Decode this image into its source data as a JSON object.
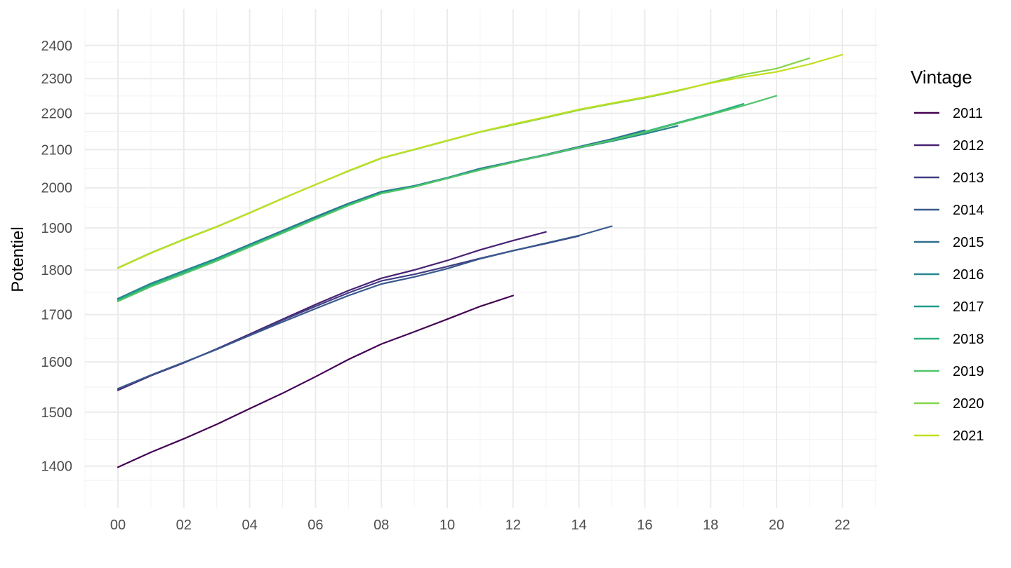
{
  "chart_data": {
    "type": "line",
    "title": "",
    "xlabel": "",
    "ylabel": "Potentiel",
    "y_scale": "log",
    "ylim": [
      1360,
      2440
    ],
    "xlim": [
      -1,
      23.2
    ],
    "x_ticks": [
      0,
      2,
      4,
      6,
      8,
      10,
      12,
      14,
      16,
      18,
      20,
      22
    ],
    "x_tick_labels": [
      "00",
      "02",
      "04",
      "06",
      "08",
      "10",
      "12",
      "14",
      "16",
      "18",
      "20",
      "22"
    ],
    "y_ticks": [
      1400,
      1500,
      1600,
      1700,
      1800,
      1900,
      2000,
      2100,
      2200,
      2300,
      2400
    ],
    "y_tick_labels": [
      "1400",
      "1500",
      "1600",
      "1700",
      "1800",
      "1900",
      "2000",
      "2100",
      "2200",
      "2300",
      "2400"
    ],
    "grid": true,
    "legend": {
      "title": "Vintage",
      "position": "right"
    },
    "series": [
      {
        "name": "2011",
        "color": "#440154",
        "x": [
          0,
          1,
          2,
          3,
          4,
          5,
          6,
          7,
          8,
          9,
          10,
          11,
          12
        ],
        "values": [
          1398,
          1425,
          1450,
          1477,
          1507,
          1537,
          1570,
          1605,
          1637,
          1663,
          1690,
          1718,
          1742
        ]
      },
      {
        "name": "2012",
        "color": "#482173",
        "x": [
          0,
          1,
          2,
          3,
          4,
          5,
          6,
          7,
          8,
          9,
          10,
          11,
          12,
          13
        ],
        "values": [
          1543,
          1572,
          1598,
          1627,
          1658,
          1690,
          1722,
          1753,
          1781,
          1800,
          1822,
          1847,
          1869,
          1890
        ]
      },
      {
        "name": "2013",
        "color": "#433E85",
        "x": [
          0,
          1,
          2,
          3,
          4,
          5,
          6,
          7,
          8,
          9,
          10,
          11,
          12,
          13,
          14
        ],
        "values": [
          1545,
          1573,
          1599,
          1626,
          1656,
          1688,
          1718,
          1748,
          1775,
          1790,
          1808,
          1827,
          1845,
          1862,
          1880
        ]
      },
      {
        "name": "2014",
        "color": "#38598C",
        "x": [
          0,
          1,
          2,
          3,
          4,
          5,
          6,
          7,
          8,
          9,
          10,
          11,
          12,
          13,
          14,
          15
        ],
        "values": [
          1546,
          1573,
          1599,
          1626,
          1655,
          1684,
          1713,
          1742,
          1768,
          1784,
          1803,
          1826,
          1845,
          1863,
          1881,
          1904
        ]
      },
      {
        "name": "2015",
        "color": "#2D708E",
        "x": [
          0,
          1,
          2,
          3,
          4,
          5,
          6,
          7,
          8,
          9,
          10,
          11,
          12,
          13,
          14,
          15,
          16
        ],
        "values": [
          1735,
          1769,
          1798,
          1827,
          1860,
          1893,
          1927,
          1960,
          1990,
          2005,
          2026,
          2050,
          2068,
          2087,
          2108,
          2129,
          2153
        ]
      },
      {
        "name": "2016",
        "color": "#25858E",
        "x": [
          0,
          1,
          2,
          3,
          4,
          5,
          6,
          7,
          8,
          9,
          10,
          11,
          12,
          13,
          14,
          15,
          16,
          17
        ],
        "values": [
          1734,
          1768,
          1797,
          1826,
          1858,
          1891,
          1924,
          1958,
          1988,
          2004,
          2025,
          2048,
          2067,
          2085,
          2105,
          2123,
          2143,
          2165
        ]
      },
      {
        "name": "2017",
        "color": "#1E9B8A",
        "x": [
          0,
          1,
          2,
          3,
          4,
          5,
          6,
          7,
          8,
          9,
          10,
          11,
          12,
          13,
          14,
          15,
          16,
          17,
          18
        ],
        "values": [
          1733,
          1767,
          1796,
          1825,
          1857,
          1890,
          1923,
          1957,
          1987,
          2003,
          2025,
          2047,
          2067,
          2086,
          2106,
          2125,
          2147,
          2172,
          2197
        ]
      },
      {
        "name": "2018",
        "color": "#2BB07F",
        "x": [
          0,
          1,
          2,
          3,
          4,
          5,
          6,
          7,
          8,
          9,
          10,
          11,
          12,
          13,
          14,
          15,
          16,
          17,
          18,
          19
        ],
        "values": [
          1731,
          1765,
          1794,
          1823,
          1856,
          1889,
          1922,
          1956,
          1986,
          2003,
          2025,
          2047,
          2067,
          2086,
          2106,
          2126,
          2149,
          2174,
          2199,
          2227
        ]
      },
      {
        "name": "2019",
        "color": "#51C56A",
        "x": [
          0,
          1,
          2,
          3,
          4,
          5,
          6,
          7,
          8,
          9,
          10,
          11,
          12,
          13,
          14,
          15,
          16,
          17,
          18,
          19,
          20
        ],
        "values": [
          1729,
          1762,
          1791,
          1821,
          1854,
          1887,
          1921,
          1955,
          1985,
          2002,
          2024,
          2046,
          2066,
          2086,
          2106,
          2125,
          2147,
          2172,
          2196,
          2222,
          2250
        ]
      },
      {
        "name": "2020",
        "color": "#85D54A",
        "x": [
          0,
          1,
          2,
          3,
          4,
          5,
          6,
          7,
          8,
          9,
          10,
          11,
          12,
          13,
          14,
          15,
          16,
          17,
          18,
          19,
          20,
          21
        ],
        "values": [
          1805,
          1840,
          1872,
          1903,
          1937,
          1973,
          2008,
          2043,
          2077,
          2100,
          2124,
          2148,
          2168,
          2188,
          2209,
          2227,
          2244,
          2264,
          2288,
          2312,
          2330,
          2361
        ]
      },
      {
        "name": "2021",
        "color": "#C2DF23",
        "x": [
          0,
          1,
          2,
          3,
          4,
          5,
          6,
          7,
          8,
          9,
          10,
          11,
          12,
          13,
          14,
          15,
          16,
          17,
          18,
          19,
          20,
          21,
          22
        ],
        "values": [
          1804,
          1839,
          1871,
          1902,
          1936,
          1972,
          2008,
          2044,
          2078,
          2101,
          2125,
          2149,
          2170,
          2190,
          2211,
          2229,
          2246,
          2266,
          2287,
          2305,
          2320,
          2343,
          2372
        ]
      }
    ]
  }
}
